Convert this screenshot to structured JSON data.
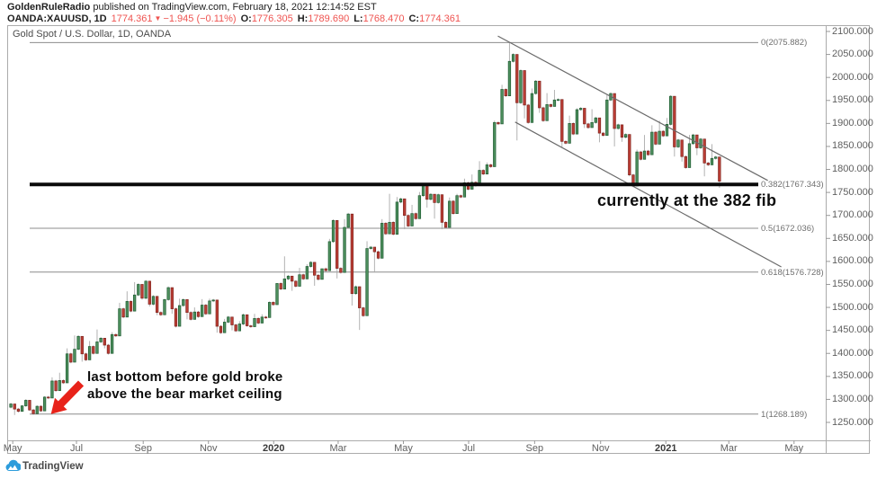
{
  "header": {
    "line1_author": "GoldenRuleRadio",
    "line1_rest": " published on TradingView.com, February 18, 2021 12:14:52 EST",
    "symbol": "OANDA:XAUUSD, 1D",
    "last_price": "1774.361",
    "direction_arrow": "▼",
    "change": "−1.945 (−0.11%)",
    "o_label": "O:",
    "o_value": "1776.305",
    "h_label": "H:",
    "h_value": "1789.690",
    "l_label": "L:",
    "l_value": "1768.470",
    "c_label": "C:",
    "c_value": "1774.361"
  },
  "chart": {
    "symbol_label": "Gold Spot / U.S. Dollar, 1D, OANDA",
    "annotations": {
      "fib_note": "currently at the 382 fib",
      "bottom_note_line1": "last bottom before gold broke",
      "bottom_note_line2": "above the bear market ceiling"
    }
  },
  "footer": {
    "brand": "TradingView"
  },
  "colors": {
    "up": "#4d8f5d",
    "up_border": "#1f5c33",
    "down": "#bd3e35",
    "down_border": "#7e241e",
    "wick": "#a5a5a5",
    "fib_line": "#8c8c8c",
    "trend_line": "#6a6a6a",
    "highlight_line": "#0a0a0a",
    "arrow": "#e8231a",
    "accent_red": "#ef5350",
    "frame": "#ababab",
    "axis_text": "#5f5f5f",
    "logo_blue": "#2d9cdb"
  },
  "chart_data": {
    "type": "candlestick",
    "title": "Gold Spot / U.S. Dollar, 1D, OANDA",
    "symbol": "XAUUSD",
    "exchange": "OANDA",
    "timeframe": "1D",
    "y_axis": {
      "min": 1250,
      "max": 2100,
      "step": 50,
      "tick_labels": [
        "2100.000",
        "2050.000",
        "2000.000",
        "1950.000",
        "1900.000",
        "1850.000",
        "1800.000",
        "1750.000",
        "1700.000",
        "1650.000",
        "1600.000",
        "1550.000",
        "1500.000",
        "1450.000",
        "1400.000",
        "1350.000",
        "1300.000",
        "1250.000"
      ]
    },
    "x_axis": {
      "ticks": [
        {
          "label": "May",
          "week": 0.5,
          "bold": false
        },
        {
          "label": "Jul",
          "week": 9.0,
          "bold": false
        },
        {
          "label": "Sep",
          "week": 17.9,
          "bold": false
        },
        {
          "label": "Nov",
          "week": 26.6,
          "bold": false
        },
        {
          "label": "2020",
          "week": 35.3,
          "bold": true
        },
        {
          "label": "Mar",
          "week": 43.9,
          "bold": false
        },
        {
          "label": "May",
          "week": 52.6,
          "bold": false
        },
        {
          "label": "Jul",
          "week": 61.3,
          "bold": false
        },
        {
          "label": "Sep",
          "week": 70.1,
          "bold": false
        },
        {
          "label": "Nov",
          "week": 78.9,
          "bold": false
        },
        {
          "label": "2021",
          "week": 87.6,
          "bold": true
        },
        {
          "label": "Mar",
          "week": 96.0,
          "bold": false
        },
        {
          "label": "May",
          "week": 104.7,
          "bold": false
        }
      ]
    },
    "fib_retracement": {
      "levels": [
        {
          "level": "0",
          "price": 2075.882,
          "label": "0(2075.882)"
        },
        {
          "level": "0.382",
          "price": 1767.343,
          "label": "0.382(1767.343)"
        },
        {
          "level": "0.5",
          "price": 1672.036,
          "label": "0.5(1672.036)"
        },
        {
          "level": "0.618",
          "price": 1576.728,
          "label": "0.618(1576.728)"
        },
        {
          "level": "1",
          "price": 1268.189,
          "label": "1(1268.189)"
        }
      ]
    },
    "highlight_line": {
      "price": 1767.343,
      "note": "thick black line at the 0.382 fib",
      "thickness": 4
    },
    "channel": [
      {
        "from": {
          "week": 65.2,
          "price": 2090
        },
        "to": {
          "week": 101.2,
          "price": 1776
        }
      },
      {
        "from": {
          "week": 67.5,
          "price": 1903
        },
        "to": {
          "week": 103.0,
          "price": 1588
        }
      }
    ],
    "arrow": {
      "tip": {
        "week": 5.6,
        "price": 1268
      },
      "tail": {
        "week": 9.6,
        "price": 1335
      }
    },
    "series_note": "daily candles downsampled to weekly [open,high,low,close], Apr 2019 - Feb 18 2021",
    "start_week": 0,
    "weekly_ohlc": [
      [
        1283,
        1290,
        1266,
        1279
      ],
      [
        1279,
        1287,
        1274,
        1286
      ],
      [
        1286,
        1298,
        1275,
        1277
      ],
      [
        1277,
        1287,
        1269,
        1285
      ],
      [
        1285,
        1307,
        1275,
        1305
      ],
      [
        1305,
        1348,
        1303,
        1340
      ],
      [
        1340,
        1358,
        1319,
        1341
      ],
      [
        1341,
        1411,
        1336,
        1399
      ],
      [
        1399,
        1439,
        1381,
        1409
      ],
      [
        1409,
        1437,
        1382,
        1399
      ],
      [
        1399,
        1427,
        1386,
        1415
      ],
      [
        1415,
        1452,
        1400,
        1425
      ],
      [
        1425,
        1433,
        1411,
        1418
      ],
      [
        1418,
        1446,
        1400,
        1441
      ],
      [
        1441,
        1510,
        1438,
        1497
      ],
      [
        1497,
        1535,
        1479,
        1513
      ],
      [
        1513,
        1555,
        1492,
        1527
      ],
      [
        1527,
        1550,
        1517,
        1520
      ],
      [
        1520,
        1557,
        1502,
        1507
      ],
      [
        1507,
        1524,
        1483,
        1489
      ],
      [
        1489,
        1519,
        1484,
        1517
      ],
      [
        1517,
        1543,
        1486,
        1497
      ],
      [
        1497,
        1519,
        1459,
        1504
      ],
      [
        1504,
        1517,
        1474,
        1489
      ],
      [
        1489,
        1500,
        1474,
        1490
      ],
      [
        1490,
        1518,
        1480,
        1505
      ],
      [
        1505,
        1519,
        1486,
        1514
      ],
      [
        1514,
        1516,
        1445,
        1459
      ],
      [
        1459,
        1475,
        1445,
        1468
      ],
      [
        1468,
        1479,
        1450,
        1462
      ],
      [
        1462,
        1470,
        1449,
        1464
      ],
      [
        1464,
        1484,
        1458,
        1460
      ],
      [
        1460,
        1486,
        1458,
        1476
      ],
      [
        1476,
        1485,
        1466,
        1479
      ],
      [
        1479,
        1513,
        1478,
        1511
      ],
      [
        1511,
        1553,
        1506,
        1552
      ],
      [
        1552,
        1611,
        1540,
        1562
      ],
      [
        1562,
        1568,
        1536,
        1557
      ],
      [
        1557,
        1586,
        1546,
        1571
      ],
      [
        1571,
        1594,
        1562,
        1589
      ],
      [
        1589,
        1598,
        1547,
        1570
      ],
      [
        1570,
        1584,
        1561,
        1584
      ],
      [
        1584,
        1649,
        1580,
        1643
      ],
      [
        1643,
        1689,
        1563,
        1585
      ],
      [
        1585,
        1692,
        1576,
        1674
      ],
      [
        1674,
        1703,
        1504,
        1530
      ],
      [
        1530,
        1545,
        1451,
        1499
      ],
      [
        1499,
        1644,
        1482,
        1628
      ],
      [
        1628,
        1631,
        1576,
        1621
      ],
      [
        1621,
        1692,
        1607,
        1683
      ],
      [
        1683,
        1747,
        1660,
        1685
      ],
      [
        1685,
        1740,
        1659,
        1729
      ],
      [
        1729,
        1736,
        1670,
        1700
      ],
      [
        1700,
        1723,
        1677,
        1704
      ],
      [
        1704,
        1751,
        1693,
        1743
      ],
      [
        1743,
        1765,
        1717,
        1735
      ],
      [
        1735,
        1746,
        1693,
        1728
      ],
      [
        1728,
        1745,
        1670,
        1685
      ],
      [
        1685,
        1739,
        1674,
        1731
      ],
      [
        1731,
        1747,
        1704,
        1743
      ],
      [
        1743,
        1780,
        1740,
        1771
      ],
      [
        1771,
        1789,
        1757,
        1772
      ],
      [
        1772,
        1818,
        1765,
        1798
      ],
      [
        1798,
        1815,
        1790,
        1810
      ],
      [
        1810,
        1906,
        1806,
        1902
      ],
      [
        1902,
        1984,
        1899,
        1974
      ],
      [
        1974,
        2075.882,
        1960,
        2035
      ],
      [
        2035,
        2050,
        1863,
        1945
      ],
      [
        1945,
        2015,
        1911,
        1940
      ],
      [
        1940,
        1976,
        1902,
        1965
      ],
      [
        1965,
        1992,
        1923,
        1934
      ],
      [
        1934,
        1966,
        1906,
        1941
      ],
      [
        1941,
        1973,
        1937,
        1951
      ],
      [
        1951,
        1952,
        1848,
        1861
      ],
      [
        1861,
        1917,
        1857,
        1900
      ],
      [
        1900,
        1933,
        1877,
        1930
      ],
      [
        1930,
        1933,
        1890,
        1899
      ],
      [
        1899,
        1931,
        1891,
        1902
      ],
      [
        1902,
        1912,
        1859,
        1879
      ],
      [
        1879,
        1962,
        1874,
        1951
      ],
      [
        1951,
        1965,
        1850,
        1889
      ],
      [
        1889,
        1897,
        1860,
        1870
      ],
      [
        1870,
        1876,
        1785,
        1788
      ],
      [
        1788,
        1843,
        1764,
        1838
      ],
      [
        1838,
        1875,
        1822,
        1840
      ],
      [
        1840,
        1896,
        1832,
        1881
      ],
      [
        1881,
        1906,
        1855,
        1883
      ],
      [
        1883,
        1912,
        1873,
        1898
      ],
      [
        1898,
        1959,
        1828,
        1849
      ],
      [
        1849,
        1864,
        1817,
        1828
      ],
      [
        1828,
        1875,
        1804,
        1856
      ],
      [
        1856,
        1875,
        1831,
        1847
      ],
      [
        1847,
        1866,
        1785,
        1814
      ],
      [
        1814,
        1855,
        1810,
        1824
      ],
      [
        1824,
        1827,
        1760,
        1774.361
      ]
    ]
  }
}
